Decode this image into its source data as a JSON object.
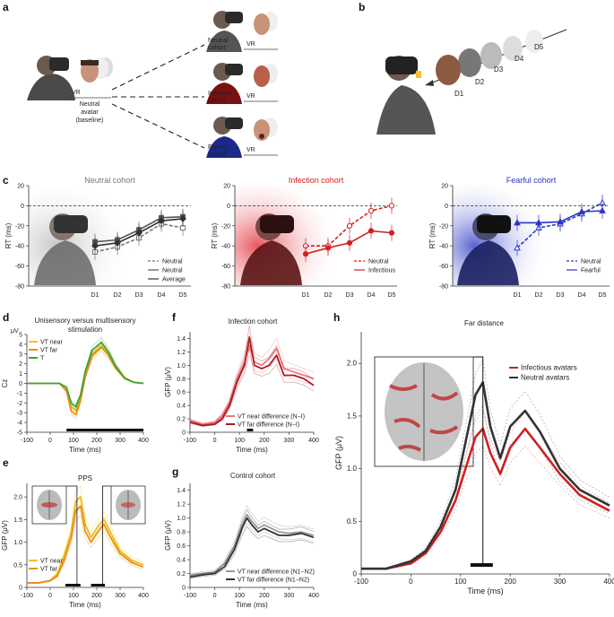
{
  "panels": {
    "a": {
      "letter": "a",
      "vr": "VR",
      "neutral_avatar": [
        "Neutral",
        "avatar",
        "(baseline)"
      ],
      "cohorts": [
        {
          "name": [
            "Neutral",
            "cohort"
          ],
          "color": "#888888",
          "shirt": "#555555"
        },
        {
          "name": [
            "Infection",
            "cohort"
          ],
          "color": "#cc2222",
          "shirt": "#7a1010"
        },
        {
          "name": [
            "Fearful",
            "cohort"
          ],
          "color": "#2233cc",
          "shirt": "#1b2a8a"
        }
      ]
    },
    "b": {
      "letter": "b",
      "distances": [
        "D1",
        "D2",
        "D3",
        "D4",
        "D5"
      ]
    },
    "c": {
      "letter": "c"
    },
    "d": {
      "letter": "d",
      "title": [
        "Unisensory versus multisensory",
        "stimulation"
      ]
    },
    "e": {
      "letter": "e",
      "title": "PPS"
    },
    "f": {
      "letter": "f",
      "title": "Infection cohort"
    },
    "g": {
      "letter": "g",
      "title": "Control cohort"
    },
    "h": {
      "letter": "h",
      "title": "Far distance"
    }
  },
  "colors": {
    "neutral_gray": "#777777",
    "infection_red": "#d22020",
    "fearful_blue": "#2b35c8",
    "yellow": "#f0c419",
    "orange": "#e8901a",
    "green": "#3aa635",
    "dark": "#333333"
  },
  "chart_data": [
    {
      "id": "c1",
      "type": "line",
      "title": "Neutral cohort",
      "ylabel": "RT (ms)",
      "ylim": [
        -80,
        20
      ],
      "yticks": [
        20,
        0,
        -20,
        -40,
        -60,
        -80
      ],
      "categories": [
        "D1",
        "D2",
        "D3",
        "D4",
        "D5"
      ],
      "series": [
        {
          "name": "Neutral",
          "style": "open-square-dashed",
          "values": [
            -46,
            -41,
            -32,
            -18,
            -22
          ]
        },
        {
          "name": "Neutral",
          "style": "filled-square-solid",
          "values": [
            -36,
            -34,
            -24,
            -12,
            -11
          ]
        },
        {
          "name": "Average",
          "style": "filled-diamond-solid",
          "values": [
            -40,
            -37,
            -27,
            -15,
            -13
          ]
        }
      ],
      "legend": "bottom-right"
    },
    {
      "id": "c2",
      "type": "line",
      "title": "Infection cohort",
      "ylabel": "RT (ms)",
      "ylim": [
        -80,
        20
      ],
      "yticks": [
        20,
        0,
        -20,
        -40,
        -60,
        -80
      ],
      "categories": [
        "D1",
        "D2",
        "D3",
        "D4",
        "D5"
      ],
      "series": [
        {
          "name": "Neutral",
          "style": "open-circle-dashed",
          "values": [
            -40,
            -40,
            -20,
            -5,
            0
          ]
        },
        {
          "name": "Infectious",
          "style": "filled-circle-solid",
          "values": [
            -48,
            -42,
            -37,
            -25,
            -27
          ]
        }
      ],
      "legend": "bottom-right"
    },
    {
      "id": "c3",
      "type": "line",
      "title": "Fearful cohort",
      "ylabel": "RT (ms)",
      "ylim": [
        -80,
        20
      ],
      "yticks": [
        20,
        0,
        -20,
        -40,
        -60,
        -80
      ],
      "categories": [
        "D1",
        "D2",
        "D3",
        "D4",
        "D5"
      ],
      "series": [
        {
          "name": "Neutral",
          "style": "open-triangle-dashed",
          "values": [
            -42,
            -22,
            -18,
            -8,
            3
          ]
        },
        {
          "name": "Fearful",
          "style": "filled-triangle-solid",
          "values": [
            -17,
            -17,
            -16,
            -6,
            -5
          ]
        }
      ],
      "legend": "bottom-right"
    },
    {
      "id": "d",
      "type": "line",
      "title": "Unisensory versus multisensory stimulation",
      "ylabel": "Cz",
      "yunit": "μV",
      "ylim": [
        -5,
        5
      ],
      "yticks": [
        5,
        4,
        3,
        2,
        1,
        0,
        -1,
        -2,
        -3,
        -4,
        -5
      ],
      "xlabel": "Time (ms)",
      "xlim": [
        -100,
        400
      ],
      "xticks": [
        -100,
        0,
        100,
        200,
        300,
        400
      ],
      "x": [
        -100,
        -50,
        0,
        40,
        70,
        90,
        110,
        130,
        150,
        180,
        220,
        250,
        280,
        320,
        360,
        400
      ],
      "series": [
        {
          "name": "VT near",
          "values": [
            0,
            0,
            0,
            0,
            -0.6,
            -2.4,
            -2.8,
            -1.5,
            0.8,
            3.0,
            3.9,
            3.0,
            1.8,
            0.6,
            0.1,
            0
          ]
        },
        {
          "name": "VT far",
          "values": [
            0,
            0,
            0,
            0,
            -0.8,
            -2.8,
            -3.2,
            -1.8,
            0.6,
            2.8,
            3.7,
            2.9,
            1.6,
            0.5,
            0.1,
            0
          ]
        },
        {
          "name": "T",
          "values": [
            0,
            0,
            0,
            0,
            -0.4,
            -2.0,
            -2.4,
            -1.2,
            1.2,
            3.4,
            4.2,
            3.2,
            1.8,
            0.5,
            0.1,
            0
          ]
        }
      ],
      "sig_bar": [
        70,
        400
      ],
      "legend": "top-left"
    },
    {
      "id": "e",
      "type": "line",
      "title": "PPS",
      "ylabel": "GFP (μV)",
      "ylim": [
        0,
        2.3
      ],
      "yticks": [
        0,
        0.5,
        1.0,
        1.5,
        2.0
      ],
      "xlabel": "Time (ms)",
      "xlim": [
        -100,
        400
      ],
      "xticks": [
        -100,
        0,
        100,
        200,
        300,
        400
      ],
      "x": [
        -100,
        -50,
        0,
        30,
        60,
        90,
        110,
        130,
        150,
        175,
        200,
        230,
        260,
        300,
        350,
        400
      ],
      "series": [
        {
          "name": "VT near",
          "values": [
            0.1,
            0.1,
            0.15,
            0.3,
            0.7,
            1.2,
            1.9,
            2.0,
            1.4,
            1.1,
            1.3,
            1.5,
            1.2,
            0.8,
            0.6,
            0.5
          ]
        },
        {
          "name": "VT far",
          "values": [
            0.1,
            0.1,
            0.15,
            0.25,
            0.6,
            1.1,
            1.7,
            1.8,
            1.25,
            1.0,
            1.2,
            1.4,
            1.1,
            0.75,
            0.55,
            0.45
          ]
        }
      ],
      "sig_bars": [
        [
          65,
          130
        ],
        [
          175,
          235
        ]
      ],
      "legend": "bottom-left"
    },
    {
      "id": "f",
      "type": "line",
      "title": "Infection cohort",
      "ylabel": "GFP (μV)",
      "ylim": [
        0,
        1.5
      ],
      "yticks": [
        0,
        0.2,
        0.4,
        0.6,
        0.8,
        1.0,
        1.2,
        1.4
      ],
      "xlabel": "Time (ms)",
      "xlim": [
        -100,
        400
      ],
      "xticks": [
        -100,
        0,
        100,
        200,
        300,
        400
      ],
      "x": [
        -100,
        -50,
        0,
        30,
        60,
        90,
        120,
        140,
        160,
        190,
        220,
        250,
        280,
        320,
        360,
        400
      ],
      "series": [
        {
          "name": "VT near difference (N−I)",
          "values": [
            0.18,
            0.12,
            0.15,
            0.25,
            0.45,
            0.8,
            1.05,
            1.3,
            1.05,
            1.0,
            1.1,
            1.25,
            0.95,
            0.9,
            0.85,
            0.8
          ]
        },
        {
          "name": "VT far difference (N−I)",
          "values": [
            0.15,
            0.1,
            0.12,
            0.2,
            0.4,
            0.75,
            1.0,
            1.42,
            1.0,
            0.95,
            1.0,
            1.15,
            0.85,
            0.85,
            0.8,
            0.7
          ]
        }
      ],
      "sig_bar": [
        130,
        155
      ],
      "legend": "bottom-right"
    },
    {
      "id": "g",
      "type": "line",
      "title": "Control cohort",
      "ylabel": "GFP (μV)",
      "ylim": [
        0,
        1.5
      ],
      "yticks": [
        0,
        0.2,
        0.4,
        0.6,
        0.8,
        1.0,
        1.2,
        1.4
      ],
      "xlabel": "Time (ms)",
      "xlim": [
        -100,
        400
      ],
      "xticks": [
        -100,
        0,
        100,
        200,
        300,
        400
      ],
      "x": [
        -100,
        -50,
        0,
        40,
        80,
        110,
        130,
        150,
        175,
        200,
        230,
        260,
        300,
        350,
        400
      ],
      "series": [
        {
          "name": "VT near difference (N1−N2)",
          "values": [
            0.18,
            0.2,
            0.22,
            0.35,
            0.6,
            0.9,
            1.05,
            0.95,
            0.85,
            0.9,
            0.85,
            0.8,
            0.78,
            0.8,
            0.75
          ]
        },
        {
          "name": "VT far difference (N1−N2)",
          "values": [
            0.15,
            0.18,
            0.2,
            0.3,
            0.55,
            0.85,
            1.0,
            0.9,
            0.8,
            0.85,
            0.8,
            0.75,
            0.75,
            0.78,
            0.72
          ]
        }
      ],
      "legend": "bottom-right"
    },
    {
      "id": "h",
      "type": "line",
      "title": "Far distance",
      "ylabel": "GFP (μV)",
      "ylim": [
        0,
        2.3
      ],
      "yticks": [
        0,
        0.5,
        1.0,
        1.5,
        2.0
      ],
      "xlabel": "Time (ms)",
      "xlim": [
        -100,
        400
      ],
      "xticks": [
        -100,
        0,
        100,
        200,
        300,
        400
      ],
      "x": [
        -100,
        -50,
        0,
        30,
        60,
        90,
        110,
        130,
        145,
        160,
        180,
        200,
        230,
        260,
        300,
        340,
        380,
        400
      ],
      "series": [
        {
          "name": "Infectious avatars",
          "values": [
            0.05,
            0.05,
            0.1,
            0.2,
            0.4,
            0.7,
            1.0,
            1.3,
            1.38,
            1.15,
            0.95,
            1.2,
            1.38,
            1.2,
            0.95,
            0.75,
            0.65,
            0.6
          ]
        },
        {
          "name": "Neutral avatars",
          "values": [
            0.05,
            0.05,
            0.12,
            0.22,
            0.45,
            0.8,
            1.25,
            1.7,
            1.82,
            1.4,
            1.1,
            1.4,
            1.55,
            1.35,
            1.0,
            0.8,
            0.7,
            0.65
          ]
        }
      ],
      "sig_bar": [
        120,
        165
      ],
      "legend": "top-right"
    }
  ]
}
